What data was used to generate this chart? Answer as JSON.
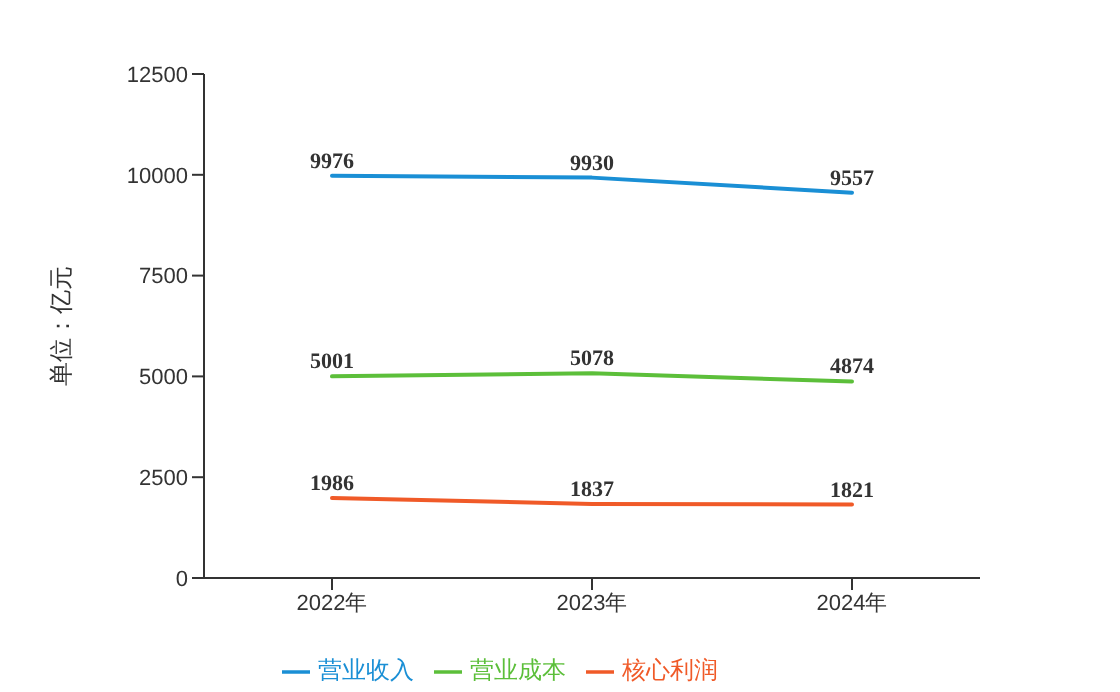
{
  "chart_data": {
    "type": "line",
    "ylabel": "单位：亿元",
    "categories": [
      "2022年",
      "2023年",
      "2024年"
    ],
    "series": [
      {
        "name": "营业收入",
        "color": "#1a8fd5",
        "values": [
          9976,
          9930,
          9557
        ]
      },
      {
        "name": "营业成本",
        "color": "#5cbf3a",
        "values": [
          5001,
          5078,
          4874
        ]
      },
      {
        "name": "核心利润",
        "color": "#f05a28",
        "values": [
          1986,
          1837,
          1821
        ]
      }
    ],
    "ylim": [
      0,
      12500
    ],
    "yticks": [
      0,
      2500,
      5000,
      7500,
      10000,
      12500
    ],
    "grid": false,
    "legend": "bottom",
    "marker": "none",
    "line_style": "solid",
    "data_labels": true
  }
}
